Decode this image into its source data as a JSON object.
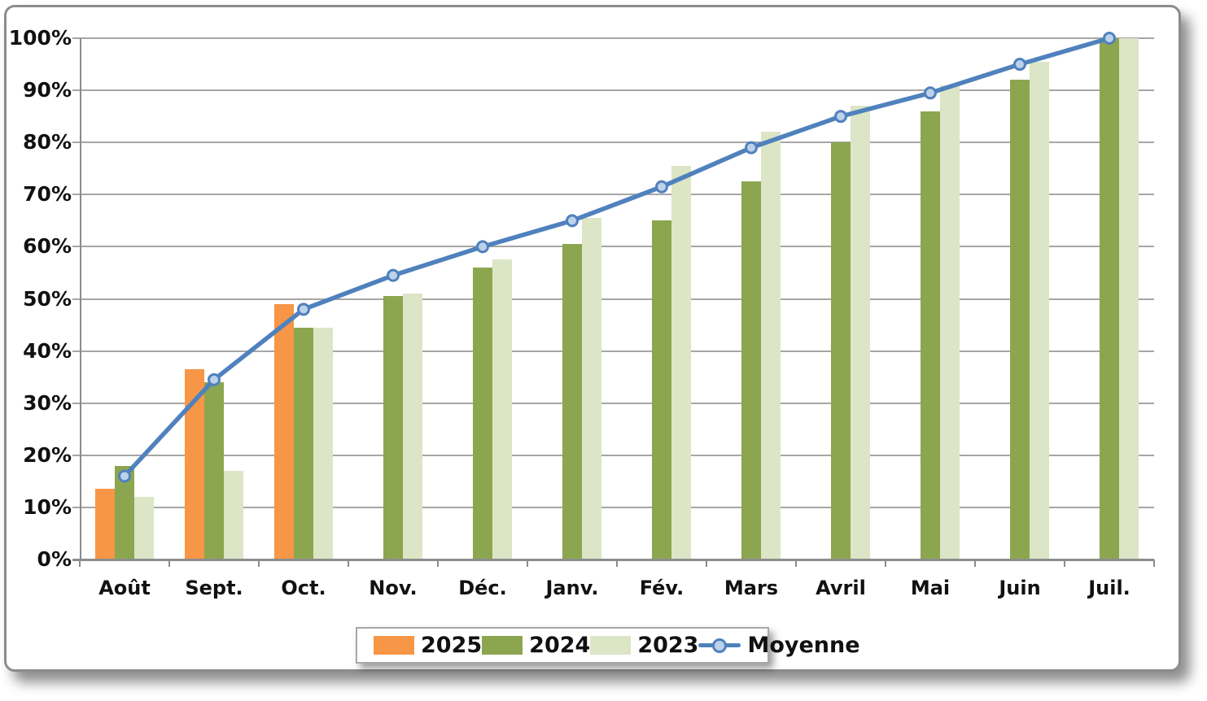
{
  "chart_data": {
    "type": "bar",
    "subtype": "grouped-bars-with-line-overlay",
    "title": "",
    "xlabel": "",
    "ylabel": "",
    "categories": [
      "Août",
      "Sept.",
      "Oct.",
      "Nov.",
      "Déc.",
      "Janv.",
      "Fév.",
      "Mars",
      "Avril",
      "Mai",
      "Juin",
      "Juil."
    ],
    "series": [
      {
        "name": "2025",
        "type": "bar",
        "color": "#F79646",
        "values": [
          13.5,
          36.5,
          49,
          null,
          null,
          null,
          null,
          null,
          null,
          null,
          null,
          null
        ]
      },
      {
        "name": "2024",
        "type": "bar",
        "color": "#8CA64F",
        "values": [
          18,
          34,
          44.5,
          50.5,
          56,
          60.5,
          65,
          72.5,
          80,
          86,
          92,
          100
        ]
      },
      {
        "name": "2023",
        "type": "bar",
        "color": "#DCE5C5",
        "values": [
          12,
          17,
          44.5,
          51,
          57.5,
          65.5,
          75.5,
          82,
          87,
          91,
          95.5,
          100
        ]
      },
      {
        "name": "Moyenne",
        "type": "line",
        "color": "#4F81BD",
        "marker_fill": "#BDD2EA",
        "values": [
          16,
          34.5,
          48,
          54.5,
          60,
          65,
          71.5,
          79,
          85,
          89.5,
          95,
          100
        ]
      }
    ],
    "ylim": [
      0,
      100
    ],
    "ytick_step": 10,
    "ytick_labels": [
      "0%",
      "10%",
      "20%",
      "30%",
      "40%",
      "50%",
      "60%",
      "70%",
      "80%",
      "90%",
      "100%"
    ],
    "grid": true,
    "legend_position": "bottom",
    "legend_entries": [
      "2025",
      "2024",
      "2023",
      "Moyenne"
    ]
  },
  "style_colors": {
    "gridline": "#a6a6a6",
    "axis": "#8c8c8c",
    "frame_border": "#8c8c8c",
    "text": "#111111"
  }
}
